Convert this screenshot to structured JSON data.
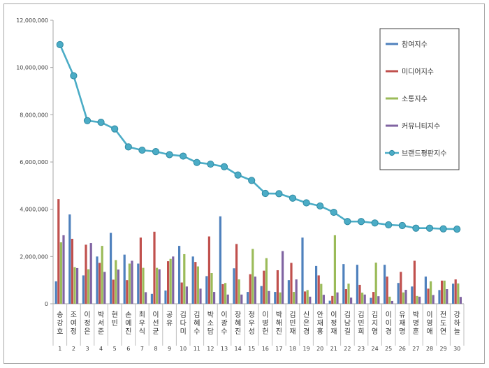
{
  "chart_data": {
    "type": "bar",
    "overlay": "line",
    "ylim": [
      0,
      12000000
    ],
    "yticks": [
      "0",
      "2,000,000",
      "4,000,000",
      "6,000,000",
      "8,000,000",
      "10,000,000",
      "12,000,000"
    ],
    "ytick_values": [
      0,
      2000000,
      4000000,
      6000000,
      8000000,
      10000000,
      12000000
    ],
    "grid": false,
    "legend_position": "top-right",
    "categories": [
      "송강호",
      "조여정",
      "이정은",
      "박서준",
      "현빈",
      "손예진",
      "최우식",
      "이선균",
      "공유",
      "김다미",
      "김혜수",
      "박소담",
      "이광수",
      "장혜진",
      "정우성",
      "이병헌",
      "박해진",
      "김민재",
      "신은경",
      "안재홍",
      "이정재",
      "김남길",
      "김민희",
      "김지영",
      "이이경",
      "유재명",
      "박명훈",
      "이영애",
      "전도연",
      "강하늘"
    ],
    "ranks": [
      "1",
      "2",
      "3",
      "4",
      "5",
      "6",
      "7",
      "8",
      "9",
      "10",
      "11",
      "12",
      "13",
      "14",
      "15",
      "16",
      "17",
      "18",
      "19",
      "20",
      "21",
      "22",
      "23",
      "24",
      "25",
      "26",
      "27",
      "28",
      "29",
      "30"
    ],
    "series": [
      {
        "name": "참여지수",
        "color": "#4f81bd",
        "kind": "bar",
        "values": [
          950000,
          3780000,
          1200000,
          2000000,
          3000000,
          2080000,
          1700000,
          420000,
          560000,
          2450000,
          2000000,
          1170000,
          3700000,
          1500000,
          500000,
          750000,
          500000,
          1000000,
          2800000,
          1600000,
          130000,
          1680000,
          1650000,
          250000,
          1650000,
          880000,
          730000,
          1150000,
          580000,
          850000
        ]
      },
      {
        "name": "미디어지수",
        "color": "#c0504d",
        "kind": "bar",
        "values": [
          4430000,
          2750000,
          2500000,
          1730000,
          1020000,
          1000000,
          2800000,
          3050000,
          1800000,
          900000,
          1770000,
          2850000,
          830000,
          2530000,
          1250000,
          1400000,
          1420000,
          1730000,
          520000,
          1200000,
          330000,
          620000,
          800000,
          500000,
          1150000,
          1350000,
          1820000,
          640000,
          980000,
          1030000
        ]
      },
      {
        "name": "소통지수",
        "color": "#9bbb59",
        "kind": "bar",
        "values": [
          2600000,
          1550000,
          1460000,
          2450000,
          1850000,
          1700000,
          1520000,
          1520000,
          1900000,
          2100000,
          1580000,
          1300000,
          880000,
          1030000,
          2320000,
          1930000,
          480000,
          500000,
          580000,
          840000,
          2900000,
          850000,
          470000,
          1740000,
          300000,
          480000,
          330000,
          950000,
          980000,
          860000
        ]
      },
      {
        "name": "커뮤니티지수",
        "color": "#8064a2",
        "kind": "bar",
        "values": [
          2900000,
          1510000,
          2570000,
          1350000,
          1450000,
          1820000,
          490000,
          1460000,
          2000000,
          730000,
          640000,
          500000,
          390000,
          390000,
          1150000,
          540000,
          2230000,
          1030000,
          300000,
          380000,
          480000,
          260000,
          390000,
          320000,
          120000,
          590000,
          300000,
          370000,
          620000,
          290000
        ]
      },
      {
        "name": "브랜드평판지수",
        "color": "#4bacc6",
        "kind": "line",
        "values": [
          10970000,
          9650000,
          7750000,
          7680000,
          7400000,
          6640000,
          6500000,
          6440000,
          6310000,
          6250000,
          5980000,
          5910000,
          5800000,
          5450000,
          5220000,
          4670000,
          4660000,
          4470000,
          4270000,
          4140000,
          3870000,
          3480000,
          3480000,
          3420000,
          3340000,
          3310000,
          3200000,
          3200000,
          3170000,
          3160000
        ]
      }
    ]
  }
}
